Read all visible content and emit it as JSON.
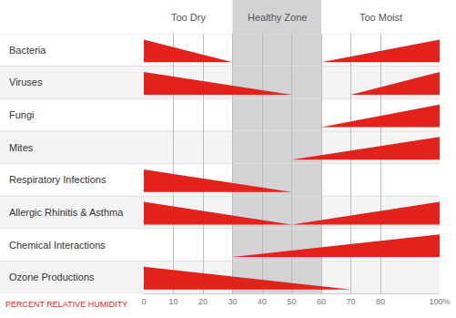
{
  "chart_data": {
    "type": "wedge",
    "color": "#e3231b",
    "xlabel": "PERCENT RELATIVE HUMIDITY",
    "xlim": [
      0,
      100
    ],
    "xticks": [
      0,
      10,
      20,
      30,
      40,
      50,
      60,
      70,
      80,
      {
        "value": 100,
        "label": "100%"
      }
    ],
    "grid": true,
    "zones": [
      {
        "label": "Too Dry",
        "from": 0,
        "to": 30
      },
      {
        "label": "Healthy Zone",
        "from": 30,
        "to": 60,
        "color": "#d3d3d5"
      },
      {
        "label": "Too Moist",
        "from": 60,
        "to": 100
      }
    ],
    "rows": [
      {
        "name": "Bacteria",
        "wedges": [
          {
            "thick": 0,
            "point": 30
          },
          {
            "thick": 100,
            "point": 60
          }
        ]
      },
      {
        "name": "Viruses",
        "wedges": [
          {
            "thick": 0,
            "point": 50
          },
          {
            "thick": 100,
            "point": 70
          }
        ]
      },
      {
        "name": "Fungi",
        "wedges": [
          {
            "thick": 100,
            "point": 60
          }
        ]
      },
      {
        "name": "Mites",
        "wedges": [
          {
            "thick": 100,
            "point": 50
          }
        ]
      },
      {
        "name": "Respiratory Infections",
        "wedges": [
          {
            "thick": 0,
            "point": 50
          }
        ]
      },
      {
        "name": "Allergic Rhinitis & Asthma",
        "wedges": [
          {
            "thick": 0,
            "point": 50
          },
          {
            "thick": 100,
            "point": 50
          }
        ]
      },
      {
        "name": "Chemical Interactions",
        "wedges": [
          {
            "thick": 100,
            "point": 30
          }
        ]
      },
      {
        "name": "Ozone Productions",
        "wedges": [
          {
            "thick": 0,
            "point": 70
          }
        ]
      }
    ]
  }
}
